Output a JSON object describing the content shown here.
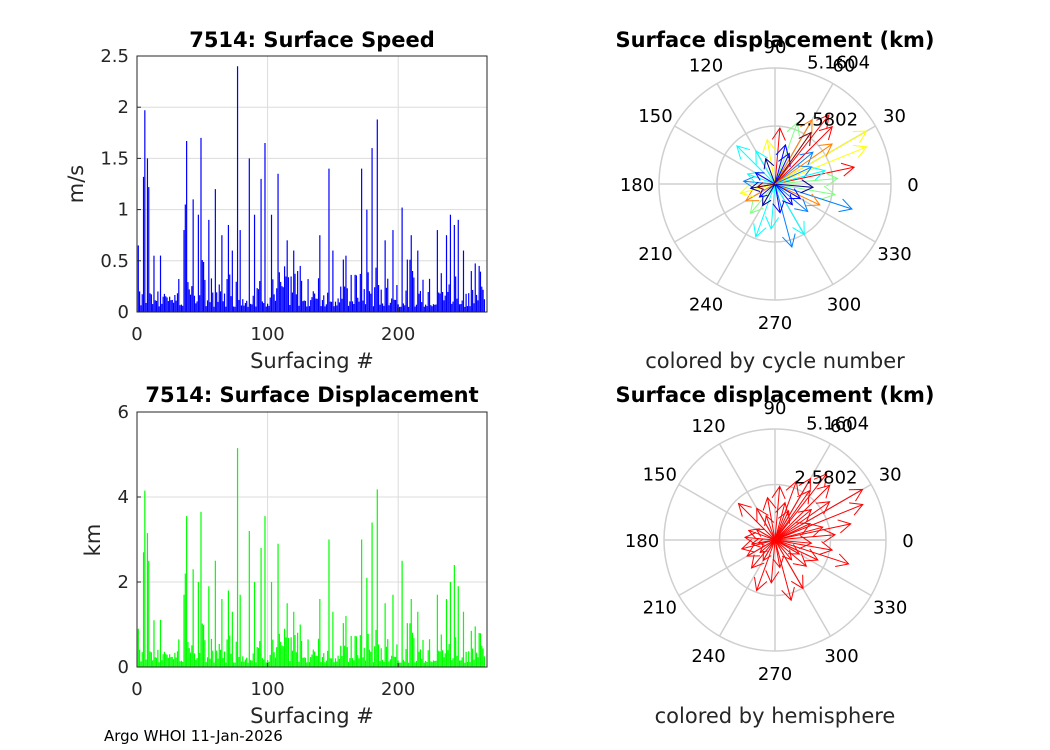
{
  "figure": {
    "footer": "Argo WHOI 11-Jan-2026"
  },
  "chart_data": [
    {
      "id": "speed",
      "type": "bar",
      "title": "7514: Surface Speed",
      "xlabel": "Surfacing #",
      "ylabel": "m/s",
      "xlim": [
        0,
        268
      ],
      "ylim": [
        0,
        2.5
      ],
      "xticks": [
        "0",
        "100",
        "200"
      ],
      "xtick_values": [
        0,
        100,
        200
      ],
      "yticks": [
        "0",
        "0.5",
        "1",
        "1.5",
        "2",
        "2.5"
      ],
      "ytick_values": [
        0,
        0.5,
        1,
        1.5,
        2,
        2.5
      ],
      "grid": true,
      "color": "#0000ff",
      "peaks": [
        {
          "x": 1,
          "y": 0.65
        },
        {
          "x": 5,
          "y": 1.32
        },
        {
          "x": 6,
          "y": 1.97
        },
        {
          "x": 8,
          "y": 1.5
        },
        {
          "x": 9,
          "y": 1.22
        },
        {
          "x": 13,
          "y": 0.55
        },
        {
          "x": 36,
          "y": 0.8
        },
        {
          "x": 37,
          "y": 1.05
        },
        {
          "x": 38,
          "y": 1.67
        },
        {
          "x": 43,
          "y": 1.1
        },
        {
          "x": 47,
          "y": 0.95
        },
        {
          "x": 49,
          "y": 1.7
        },
        {
          "x": 55,
          "y": 0.9
        },
        {
          "x": 60,
          "y": 1.2
        },
        {
          "x": 65,
          "y": 0.75
        },
        {
          "x": 70,
          "y": 0.85
        },
        {
          "x": 73,
          "y": 0.6
        },
        {
          "x": 77,
          "y": 2.4
        },
        {
          "x": 79,
          "y": 0.8
        },
        {
          "x": 86,
          "y": 1.5
        },
        {
          "x": 90,
          "y": 0.95
        },
        {
          "x": 95,
          "y": 1.3
        },
        {
          "x": 98,
          "y": 1.65
        },
        {
          "x": 103,
          "y": 0.95
        },
        {
          "x": 108,
          "y": 1.35
        },
        {
          "x": 115,
          "y": 0.7
        },
        {
          "x": 120,
          "y": 0.6
        },
        {
          "x": 125,
          "y": 0.45
        },
        {
          "x": 140,
          "y": 0.75
        },
        {
          "x": 147,
          "y": 1.4
        },
        {
          "x": 150,
          "y": 0.6
        },
        {
          "x": 160,
          "y": 0.55
        },
        {
          "x": 172,
          "y": 1.4
        },
        {
          "x": 176,
          "y": 1.0
        },
        {
          "x": 180,
          "y": 1.6
        },
        {
          "x": 184,
          "y": 1.88
        },
        {
          "x": 190,
          "y": 0.7
        },
        {
          "x": 196,
          "y": 0.8
        },
        {
          "x": 203,
          "y": 1.02
        },
        {
          "x": 210,
          "y": 0.75
        },
        {
          "x": 215,
          "y": 0.6
        },
        {
          "x": 230,
          "y": 0.8
        },
        {
          "x": 237,
          "y": 0.75
        },
        {
          "x": 240,
          "y": 0.95
        },
        {
          "x": 243,
          "y": 0.85
        },
        {
          "x": 246,
          "y": 0.9
        },
        {
          "x": 250,
          "y": 0.6
        },
        {
          "x": 256,
          "y": 0.4
        },
        {
          "x": 262,
          "y": 0.45
        }
      ]
    },
    {
      "id": "disp",
      "type": "bar",
      "title": "7514: Surface Displacement",
      "xlabel": "Surfacing #",
      "ylabel": "km",
      "xlim": [
        0,
        268
      ],
      "ylim": [
        0,
        6
      ],
      "xticks": [
        "0",
        "100",
        "200"
      ],
      "xtick_values": [
        0,
        100,
        200
      ],
      "yticks": [
        "0",
        "2",
        "4",
        "6"
      ],
      "ytick_values": [
        0,
        2,
        4,
        6
      ],
      "grid": true,
      "color": "#00ff00",
      "peaks": [
        {
          "x": 1,
          "y": 0.9
        },
        {
          "x": 5,
          "y": 2.7
        },
        {
          "x": 6,
          "y": 4.15
        },
        {
          "x": 8,
          "y": 3.15
        },
        {
          "x": 9,
          "y": 2.5
        },
        {
          "x": 13,
          "y": 1.1
        },
        {
          "x": 36,
          "y": 1.7
        },
        {
          "x": 37,
          "y": 2.2
        },
        {
          "x": 38,
          "y": 3.55
        },
        {
          "x": 43,
          "y": 2.3
        },
        {
          "x": 47,
          "y": 2.0
        },
        {
          "x": 49,
          "y": 3.65
        },
        {
          "x": 55,
          "y": 1.9
        },
        {
          "x": 60,
          "y": 2.5
        },
        {
          "x": 65,
          "y": 1.6
        },
        {
          "x": 70,
          "y": 1.8
        },
        {
          "x": 73,
          "y": 1.3
        },
        {
          "x": 77,
          "y": 5.15
        },
        {
          "x": 79,
          "y": 1.7
        },
        {
          "x": 86,
          "y": 3.2
        },
        {
          "x": 90,
          "y": 2.0
        },
        {
          "x": 95,
          "y": 2.8
        },
        {
          "x": 98,
          "y": 3.55
        },
        {
          "x": 103,
          "y": 2.0
        },
        {
          "x": 108,
          "y": 2.9
        },
        {
          "x": 115,
          "y": 1.5
        },
        {
          "x": 120,
          "y": 1.3
        },
        {
          "x": 125,
          "y": 1.0
        },
        {
          "x": 140,
          "y": 1.6
        },
        {
          "x": 147,
          "y": 3.0
        },
        {
          "x": 150,
          "y": 1.3
        },
        {
          "x": 160,
          "y": 1.2
        },
        {
          "x": 172,
          "y": 3.0
        },
        {
          "x": 176,
          "y": 2.1
        },
        {
          "x": 180,
          "y": 3.4
        },
        {
          "x": 184,
          "y": 4.18
        },
        {
          "x": 190,
          "y": 1.5
        },
        {
          "x": 196,
          "y": 1.7
        },
        {
          "x": 203,
          "y": 2.5
        },
        {
          "x": 210,
          "y": 1.6
        },
        {
          "x": 215,
          "y": 1.3
        },
        {
          "x": 230,
          "y": 1.7
        },
        {
          "x": 237,
          "y": 1.6
        },
        {
          "x": 240,
          "y": 2.0
        },
        {
          "x": 243,
          "y": 2.4
        },
        {
          "x": 246,
          "y": 1.9
        },
        {
          "x": 250,
          "y": 1.3
        },
        {
          "x": 256,
          "y": 0.85
        },
        {
          "x": 262,
          "y": 0.8
        }
      ]
    },
    {
      "id": "polar_cycle",
      "type": "polar",
      "title": "Surface displacement (km)",
      "subtitle": "colored by cycle number",
      "rmax": 5.1604,
      "rings": [
        2.5802,
        5.1604
      ],
      "ring_labels": [
        "2.5802",
        "5.1604"
      ],
      "angles": [
        "0",
        "30",
        "60",
        "90",
        "120",
        "150",
        "180",
        "210",
        "240",
        "270",
        "300",
        "330"
      ],
      "angle_values": [
        0,
        30,
        60,
        90,
        120,
        150,
        180,
        210,
        240,
        270,
        300,
        330
      ],
      "colormap": [
        "#00008f",
        "#0000ff",
        "#0080ff",
        "#00ffff",
        "#80ff80",
        "#ffff00",
        "#ff8000",
        "#ff0000",
        "#800000"
      ],
      "vectors": [
        {
          "angle": 30,
          "r": 4.7,
          "c": 0.62
        },
        {
          "angle": 22,
          "r": 4.4,
          "c": 0.66
        },
        {
          "angle": 45,
          "r": 3.6,
          "c": 0.88
        },
        {
          "angle": 52,
          "r": 3.9,
          "c": 0.92
        },
        {
          "angle": 60,
          "r": 3.3,
          "c": 0.7
        },
        {
          "angle": 70,
          "r": 2.9,
          "c": 0.55
        },
        {
          "angle": 12,
          "r": 3.6,
          "c": 0.82
        },
        {
          "angle": 5,
          "r": 2.8,
          "c": 0.5
        },
        {
          "angle": -10,
          "r": 2.7,
          "c": 0.45
        },
        {
          "angle": -18,
          "r": 3.6,
          "c": 0.22
        },
        {
          "angle": -25,
          "r": 2.2,
          "c": 0.75
        },
        {
          "angle": -40,
          "r": 1.9,
          "c": 0.3
        },
        {
          "angle": -60,
          "r": 2.6,
          "c": 0.35
        },
        {
          "angle": -75,
          "r": 2.9,
          "c": 0.3
        },
        {
          "angle": -95,
          "r": 2.0,
          "c": 0.4
        },
        {
          "angle": -110,
          "r": 2.5,
          "c": 0.33
        },
        {
          "angle": -130,
          "r": 1.7,
          "c": 0.5
        },
        {
          "angle": -150,
          "r": 1.5,
          "c": 0.8
        },
        {
          "angle": -165,
          "r": 1.6,
          "c": 0.6
        },
        {
          "angle": 175,
          "r": 1.4,
          "c": 0.2
        },
        {
          "angle": 160,
          "r": 1.3,
          "c": 0.35
        },
        {
          "angle": 135,
          "r": 2.4,
          "c": 0.32
        },
        {
          "angle": 120,
          "r": 1.7,
          "c": 0.42
        },
        {
          "angle": 100,
          "r": 2.0,
          "c": 0.6
        },
        {
          "angle": 85,
          "r": 2.5,
          "c": 0.85
        },
        {
          "angle": 75,
          "r": 1.8,
          "c": 0.12
        },
        {
          "angle": 40,
          "r": 2.2,
          "c": 0.28
        },
        {
          "angle": 25,
          "r": 1.8,
          "c": 0.2
        },
        {
          "angle": 15,
          "r": 2.3,
          "c": 0.4
        },
        {
          "angle": -5,
          "r": 1.7,
          "c": 0.05
        },
        {
          "angle": -30,
          "r": 1.3,
          "c": 0.1
        },
        {
          "angle": -50,
          "r": 1.2,
          "c": 0.08
        },
        {
          "angle": -80,
          "r": 1.3,
          "c": 0.15
        },
        {
          "angle": -120,
          "r": 1.1,
          "c": 0.05
        },
        {
          "angle": 150,
          "r": 1.0,
          "c": 0.08
        },
        {
          "angle": 110,
          "r": 1.2,
          "c": 0.05
        },
        {
          "angle": 65,
          "r": 1.5,
          "c": 0.1
        },
        {
          "angle": -140,
          "r": 0.9,
          "c": 0.15
        },
        {
          "angle": -170,
          "r": 1.1,
          "c": 0.02
        },
        {
          "angle": 190,
          "r": 0.8,
          "c": 0.95
        },
        {
          "angle": 55,
          "r": 2.8,
          "c": 0.98
        },
        {
          "angle": 35,
          "r": 3.1,
          "c": 0.72
        }
      ]
    },
    {
      "id": "polar_hemi",
      "type": "polar",
      "title": "Surface displacement (km)",
      "subtitle": "colored by hemisphere",
      "rmax": 5.1604,
      "rings": [
        2.5802,
        5.1604
      ],
      "ring_labels": [
        "2.5802",
        "5.1604"
      ],
      "angles": [
        "0",
        "30",
        "60",
        "90",
        "120",
        "150",
        "180",
        "210",
        "240",
        "270",
        "300",
        "330"
      ],
      "angle_values": [
        0,
        30,
        60,
        90,
        120,
        150,
        180,
        210,
        240,
        270,
        300,
        330
      ],
      "color": "#ff0000",
      "vectors_from": "polar_cycle"
    }
  ]
}
